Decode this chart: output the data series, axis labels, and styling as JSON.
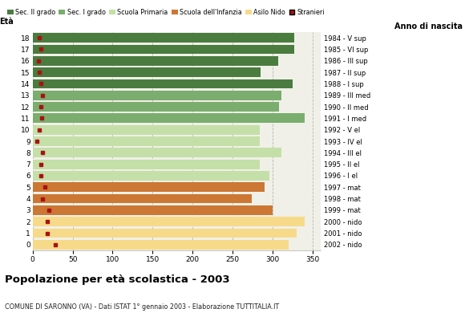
{
  "ages": [
    18,
    17,
    16,
    15,
    14,
    13,
    12,
    11,
    10,
    9,
    8,
    7,
    6,
    5,
    4,
    3,
    2,
    1,
    0
  ],
  "bar_values": [
    327,
    327,
    307,
    285,
    325,
    311,
    308,
    340,
    284,
    284,
    311,
    284,
    296,
    290,
    274,
    300,
    340,
    330,
    320
  ],
  "stranieri": [
    8,
    10,
    7,
    8,
    10,
    12,
    10,
    11,
    8,
    5,
    12,
    10,
    10,
    15,
    12,
    20,
    18,
    18,
    28
  ],
  "bar_colors": [
    "#4a7c3f",
    "#4a7c3f",
    "#4a7c3f",
    "#4a7c3f",
    "#4a7c3f",
    "#7aad6e",
    "#7aad6e",
    "#7aad6e",
    "#c5dfa8",
    "#c5dfa8",
    "#c5dfa8",
    "#c5dfa8",
    "#c5dfa8",
    "#cc7733",
    "#cc7733",
    "#cc7733",
    "#f7d98a",
    "#f7d98a",
    "#f7d98a"
  ],
  "anno_labels": [
    "1984 - V sup",
    "1985 - VI sup",
    "1986 - III sup",
    "1987 - II sup",
    "1988 - I sup",
    "1989 - III med",
    "1990 - II med",
    "1991 - I med",
    "1992 - V el",
    "1993 - IV el",
    "1994 - III el",
    "1995 - II el",
    "1996 - I el",
    "1997 - mat",
    "1998 - mat",
    "1999 - mat",
    "2000 - nido",
    "2001 - nido",
    "2002 - nido"
  ],
  "legend_labels": [
    "Sec. II grado",
    "Sec. I grado",
    "Scuola Primaria",
    "Scuola dell'Infanzia",
    "Asilo Nido",
    "Stranieri"
  ],
  "legend_colors": [
    "#4a7c3f",
    "#7aad6e",
    "#c5dfa8",
    "#cc7733",
    "#f7d98a",
    "#aa1111"
  ],
  "title": "Popolazione per età scolastica - 2003",
  "subtitle": "COMUNE DI SARONNO (VA) - Dati ISTAT 1° gennaio 2003 - Elaborazione TUTTITALIA.IT",
  "xlabel_eta": "Età",
  "xlabel_anno": "Anno di nascita",
  "xlim": [
    0,
    360
  ],
  "xticks": [
    0,
    50,
    100,
    150,
    200,
    250,
    300,
    350
  ],
  "bg_color": "#f0f0e8",
  "stranieri_color": "#aa1111"
}
